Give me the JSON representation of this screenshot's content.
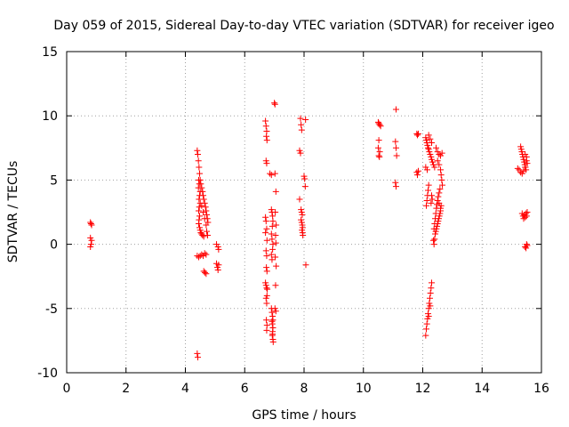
{
  "chart_data": {
    "type": "scatter",
    "title": "Day 059 of 2015, Sidereal Day-to-day VTEC variation (SDTVAR) for receiver igeo",
    "xlabel": "GPS time / hours",
    "ylabel": "SDTVAR / TECUs",
    "xlim": [
      0,
      16
    ],
    "ylim": [
      -10,
      15
    ],
    "xticks": [
      0,
      2,
      4,
      6,
      8,
      10,
      12,
      14,
      16
    ],
    "yticks": [
      -10,
      -5,
      0,
      5,
      10,
      15
    ],
    "grid": true,
    "marker": "+",
    "color": "#ff0000",
    "series": [
      {
        "name": "SDTVAR",
        "points": [
          [
            0.8,
            1.7
          ],
          [
            0.82,
            1.6
          ],
          [
            0.84,
            1.5
          ],
          [
            0.8,
            0.5
          ],
          [
            0.84,
            0.3
          ],
          [
            0.82,
            0.0
          ],
          [
            0.8,
            -0.2
          ],
          [
            4.4,
            7.3
          ],
          [
            4.42,
            7.0
          ],
          [
            4.44,
            6.5
          ],
          [
            4.46,
            6.0
          ],
          [
            4.48,
            5.5
          ],
          [
            4.45,
            5.0
          ],
          [
            4.47,
            4.7
          ],
          [
            4.44,
            4.4
          ],
          [
            4.5,
            4.1
          ],
          [
            4.48,
            3.8
          ],
          [
            4.46,
            3.5
          ],
          [
            4.5,
            3.2
          ],
          [
            4.47,
            2.9
          ],
          [
            4.45,
            2.6
          ],
          [
            4.48,
            2.2
          ],
          [
            4.46,
            1.9
          ],
          [
            4.45,
            1.6
          ],
          [
            4.48,
            1.3
          ],
          [
            4.5,
            1.1
          ],
          [
            4.52,
            0.9
          ],
          [
            4.55,
            0.8
          ],
          [
            4.58,
            0.7
          ],
          [
            4.62,
            0.6
          ],
          [
            4.5,
            5.0
          ],
          [
            4.52,
            4.7
          ],
          [
            4.55,
            4.4
          ],
          [
            4.58,
            4.1
          ],
          [
            4.6,
            3.8
          ],
          [
            4.62,
            3.5
          ],
          [
            4.65,
            3.2
          ],
          [
            4.68,
            2.9
          ],
          [
            4.7,
            2.6
          ],
          [
            4.72,
            2.3
          ],
          [
            4.74,
            2.0
          ],
          [
            4.76,
            1.7
          ],
          [
            4.55,
            3.0
          ],
          [
            4.6,
            2.5
          ],
          [
            4.65,
            2.0
          ],
          [
            4.7,
            1.5
          ],
          [
            4.72,
            1.0
          ],
          [
            4.75,
            0.7
          ],
          [
            4.4,
            -0.9
          ],
          [
            4.45,
            -1.0
          ],
          [
            4.5,
            -0.9
          ],
          [
            4.55,
            -0.8
          ],
          [
            4.6,
            -0.9
          ],
          [
            4.65,
            -0.7
          ],
          [
            4.7,
            -0.8
          ],
          [
            4.62,
            -2.1
          ],
          [
            4.66,
            -2.2
          ],
          [
            4.7,
            -2.3
          ],
          [
            4.4,
            -8.5
          ],
          [
            4.42,
            -8.8
          ],
          [
            5.05,
            0.0
          ],
          [
            5.1,
            -0.2
          ],
          [
            5.12,
            -0.4
          ],
          [
            5.05,
            -1.5
          ],
          [
            5.08,
            -1.8
          ],
          [
            5.1,
            -2.0
          ],
          [
            5.12,
            -1.6
          ],
          [
            6.7,
            9.6
          ],
          [
            6.72,
            9.2
          ],
          [
            6.74,
            8.8
          ],
          [
            6.73,
            8.4
          ],
          [
            6.75,
            8.1
          ],
          [
            6.72,
            6.5
          ],
          [
            6.74,
            6.3
          ],
          [
            6.7,
            2.1
          ],
          [
            6.72,
            1.8
          ],
          [
            6.74,
            1.2
          ],
          [
            6.7,
            0.9
          ],
          [
            6.75,
            0.3
          ],
          [
            6.72,
            -0.5
          ],
          [
            6.74,
            -0.9
          ],
          [
            6.73,
            -1.8
          ],
          [
            6.75,
            -2.1
          ],
          [
            6.7,
            -3.0
          ],
          [
            6.72,
            -3.2
          ],
          [
            6.74,
            -3.4
          ],
          [
            6.76,
            -3.5
          ],
          [
            6.75,
            -4.0
          ],
          [
            6.72,
            -4.2
          ],
          [
            6.74,
            -4.6
          ],
          [
            6.73,
            -5.9
          ],
          [
            6.75,
            -6.3
          ],
          [
            6.74,
            -6.7
          ],
          [
            6.9,
            2.7
          ],
          [
            6.92,
            2.5
          ],
          [
            6.94,
            2.2
          ],
          [
            6.95,
            1.8
          ],
          [
            6.93,
            1.4
          ],
          [
            6.9,
            0.8
          ],
          [
            6.92,
            0.4
          ],
          [
            6.95,
            0.0
          ],
          [
            6.94,
            -0.4
          ],
          [
            6.9,
            -0.8
          ],
          [
            6.92,
            -1.2
          ],
          [
            6.9,
            -5.0
          ],
          [
            6.92,
            -5.3
          ],
          [
            6.94,
            -5.6
          ],
          [
            6.95,
            -5.9
          ],
          [
            6.93,
            -6.2
          ],
          [
            6.95,
            -6.5
          ],
          [
            6.94,
            -6.8
          ],
          [
            6.93,
            -7.1
          ],
          [
            6.95,
            -7.4
          ],
          [
            6.96,
            -7.6
          ],
          [
            6.94,
            -7.0
          ],
          [
            6.92,
            -6.0
          ],
          [
            6.85,
            5.5
          ],
          [
            6.9,
            5.4
          ],
          [
            7.0,
            11.0
          ],
          [
            7.02,
            10.9
          ],
          [
            7.02,
            5.5
          ],
          [
            7.05,
            4.1
          ],
          [
            7.03,
            2.5
          ],
          [
            7.06,
            1.5
          ],
          [
            7.04,
            0.7
          ],
          [
            7.05,
            0.1
          ],
          [
            7.03,
            -1.0
          ],
          [
            7.06,
            -1.7
          ],
          [
            7.04,
            -3.2
          ],
          [
            7.02,
            -5.0
          ],
          [
            7.05,
            -5.2
          ],
          [
            7.88,
            9.8
          ],
          [
            7.9,
            9.3
          ],
          [
            7.92,
            8.9
          ],
          [
            7.85,
            7.3
          ],
          [
            7.88,
            7.1
          ],
          [
            7.85,
            3.5
          ],
          [
            7.9,
            2.7
          ],
          [
            7.92,
            2.5
          ],
          [
            7.94,
            2.3
          ],
          [
            7.9,
            1.9
          ],
          [
            7.92,
            1.7
          ],
          [
            7.94,
            1.5
          ],
          [
            7.95,
            1.3
          ],
          [
            7.93,
            1.1
          ],
          [
            7.95,
            0.9
          ],
          [
            7.96,
            0.7
          ],
          [
            8.05,
            9.7
          ],
          [
            8.0,
            5.3
          ],
          [
            8.02,
            5.1
          ],
          [
            8.04,
            4.5
          ],
          [
            8.06,
            -1.6
          ],
          [
            10.5,
            9.5
          ],
          [
            10.52,
            9.4
          ],
          [
            10.55,
            9.3
          ],
          [
            10.58,
            9.2
          ],
          [
            10.52,
            8.1
          ],
          [
            10.5,
            7.5
          ],
          [
            10.55,
            7.2
          ],
          [
            10.52,
            6.9
          ],
          [
            10.54,
            6.8
          ],
          [
            11.1,
            10.5
          ],
          [
            11.08,
            8.0
          ],
          [
            11.1,
            7.5
          ],
          [
            11.12,
            6.9
          ],
          [
            11.08,
            4.8
          ],
          [
            11.1,
            4.5
          ],
          [
            11.8,
            8.6
          ],
          [
            11.82,
            8.5
          ],
          [
            11.85,
            8.6
          ],
          [
            11.8,
            5.6
          ],
          [
            11.82,
            5.4
          ],
          [
            11.85,
            5.7
          ],
          [
            12.1,
            8.3
          ],
          [
            12.12,
            8.1
          ],
          [
            12.14,
            7.9
          ],
          [
            12.16,
            7.7
          ],
          [
            12.18,
            7.5
          ],
          [
            12.2,
            7.4
          ],
          [
            12.22,
            7.2
          ],
          [
            12.25,
            7.0
          ],
          [
            12.28,
            6.8
          ],
          [
            12.3,
            6.6
          ],
          [
            12.33,
            6.4
          ],
          [
            12.36,
            6.2
          ],
          [
            12.4,
            6.0
          ],
          [
            12.15,
            5.8
          ],
          [
            12.1,
            6.0
          ],
          [
            12.2,
            8.5
          ],
          [
            12.25,
            8.2
          ],
          [
            12.3,
            7.9
          ],
          [
            12.45,
            7.5
          ],
          [
            12.5,
            7.2
          ],
          [
            12.55,
            7.0
          ],
          [
            12.6,
            6.9
          ],
          [
            12.65,
            7.1
          ],
          [
            12.5,
            6.5
          ],
          [
            12.55,
            6.2
          ],
          [
            12.6,
            5.8
          ],
          [
            12.62,
            5.4
          ],
          [
            12.64,
            5.0
          ],
          [
            12.66,
            4.6
          ],
          [
            12.58,
            4.3
          ],
          [
            12.55,
            4.0
          ],
          [
            12.52,
            3.7
          ],
          [
            12.5,
            3.4
          ],
          [
            12.48,
            3.1
          ],
          [
            12.46,
            2.8
          ],
          [
            12.44,
            2.4
          ],
          [
            12.42,
            2.0
          ],
          [
            12.4,
            1.6
          ],
          [
            12.38,
            1.2
          ],
          [
            12.2,
            4.6
          ],
          [
            12.18,
            4.2
          ],
          [
            12.16,
            3.8
          ],
          [
            12.14,
            3.4
          ],
          [
            12.12,
            3.0
          ],
          [
            12.3,
            3.8
          ],
          [
            12.32,
            3.5
          ],
          [
            12.28,
            3.2
          ],
          [
            12.55,
            3.2
          ],
          [
            12.6,
            2.8
          ],
          [
            12.58,
            2.4
          ],
          [
            12.54,
            2.0
          ],
          [
            12.5,
            1.6
          ],
          [
            12.46,
            1.2
          ],
          [
            12.42,
            0.8
          ],
          [
            12.4,
            0.4
          ],
          [
            12.38,
            0.0
          ],
          [
            12.36,
            0.3
          ],
          [
            12.44,
            1.0
          ],
          [
            12.48,
            1.4
          ],
          [
            12.52,
            1.8
          ],
          [
            12.56,
            2.2
          ],
          [
            12.6,
            2.6
          ],
          [
            12.62,
            3.0
          ],
          [
            12.3,
            -3.0
          ],
          [
            12.28,
            -3.4
          ],
          [
            12.26,
            -3.8
          ],
          [
            12.24,
            -4.2
          ],
          [
            12.22,
            -4.6
          ],
          [
            12.2,
            -5.0
          ],
          [
            12.18,
            -5.4
          ],
          [
            12.16,
            -5.8
          ],
          [
            12.14,
            -6.2
          ],
          [
            12.12,
            -6.6
          ],
          [
            12.1,
            -7.1
          ],
          [
            12.25,
            -4.8
          ],
          [
            12.2,
            -5.6
          ],
          [
            15.2,
            5.9
          ],
          [
            15.25,
            5.8
          ],
          [
            15.3,
            5.6
          ],
          [
            15.35,
            5.5
          ],
          [
            15.4,
            5.7
          ],
          [
            15.45,
            6.0
          ],
          [
            15.3,
            7.6
          ],
          [
            15.32,
            7.4
          ],
          [
            15.34,
            7.2
          ],
          [
            15.36,
            7.0
          ],
          [
            15.38,
            6.8
          ],
          [
            15.4,
            6.6
          ],
          [
            15.42,
            6.4
          ],
          [
            15.44,
            6.2
          ],
          [
            15.46,
            6.0
          ],
          [
            15.48,
            5.8
          ],
          [
            15.5,
            6.5
          ],
          [
            15.52,
            6.3
          ],
          [
            15.45,
            7.0
          ],
          [
            15.5,
            6.8
          ],
          [
            15.35,
            2.4
          ],
          [
            15.38,
            2.2
          ],
          [
            15.4,
            2.0
          ],
          [
            15.42,
            2.3
          ],
          [
            15.45,
            2.1
          ],
          [
            15.48,
            2.4
          ],
          [
            15.5,
            2.2
          ],
          [
            15.52,
            2.5
          ],
          [
            15.45,
            -0.2
          ],
          [
            15.48,
            -0.3
          ],
          [
            15.5,
            0.0
          ],
          [
            15.52,
            -0.1
          ]
        ]
      }
    ]
  }
}
